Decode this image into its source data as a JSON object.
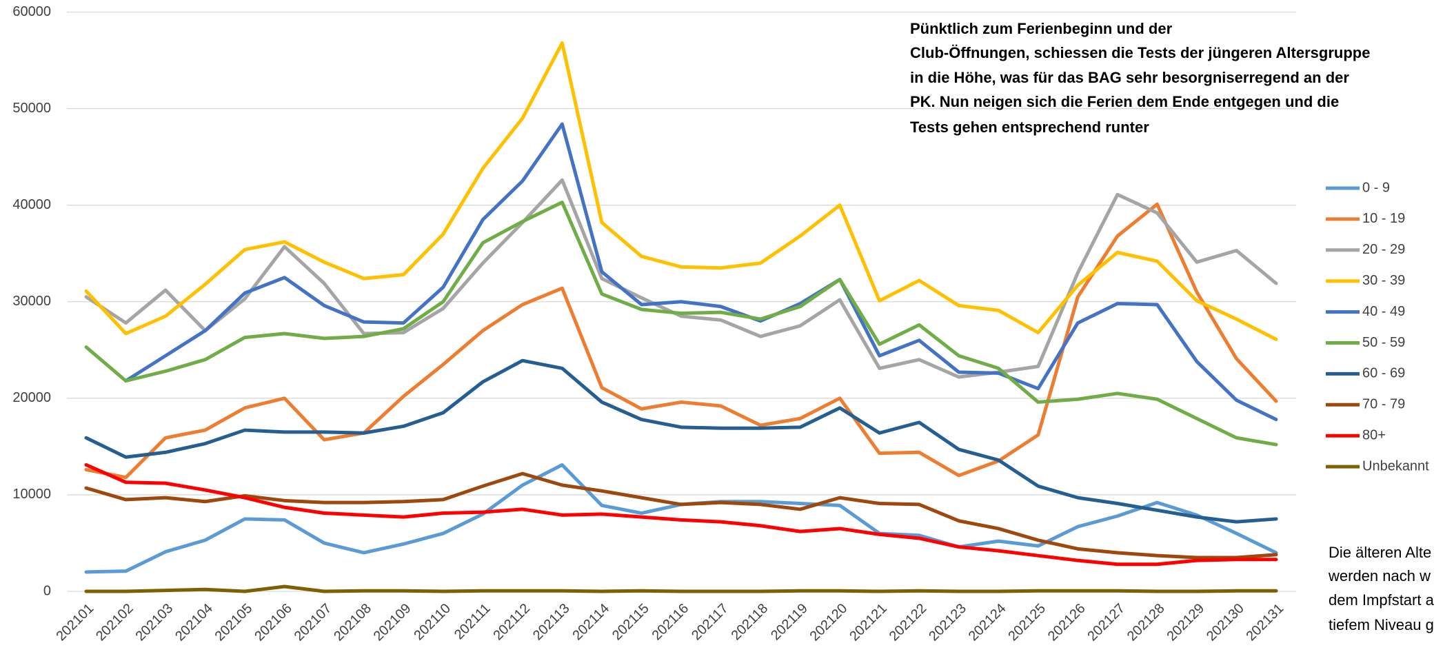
{
  "chart_data": {
    "type": "line",
    "categories": [
      "202101",
      "202102",
      "202103",
      "202104",
      "202105",
      "202106",
      "202107",
      "202108",
      "202109",
      "202110",
      "202111",
      "202112",
      "202113",
      "202114",
      "202115",
      "202116",
      "202117",
      "202118",
      "202119",
      "202120",
      "202121",
      "202122",
      "202123",
      "202124",
      "202125",
      "202126",
      "202127",
      "202128",
      "202129",
      "202130",
      "202131"
    ],
    "ylim": [
      0,
      60000
    ],
    "yticks": [
      0,
      10000,
      20000,
      30000,
      40000,
      50000,
      60000
    ],
    "grid": true,
    "legend": "right",
    "series": [
      {
        "name": "0 - 9",
        "color": "#5b9bd5",
        "values": [
          2000,
          2100,
          4100,
          5300,
          7500,
          7400,
          5000,
          4000,
          4900,
          6000,
          8000,
          11000,
          13100,
          8900,
          8100,
          9000,
          9300,
          9300,
          9100,
          8900,
          6000,
          5800,
          4600,
          5200,
          4700,
          6700,
          7800,
          9200,
          7900,
          6000,
          4000
        ]
      },
      {
        "name": "10 - 19",
        "color": "#ed7d31",
        "values": [
          12600,
          11800,
          15900,
          16700,
          19000,
          20000,
          15700,
          16400,
          20200,
          23500,
          27000,
          29700,
          31400,
          21100,
          18900,
          19600,
          19200,
          17200,
          17900,
          20000,
          14300,
          14400,
          12000,
          13500,
          16200,
          30500,
          36800,
          40100,
          31000,
          24100,
          19700
        ]
      },
      {
        "name": "20 - 29",
        "color": "#a5a5a5",
        "values": [
          30500,
          27800,
          31200,
          27000,
          30300,
          35700,
          31900,
          26700,
          26800,
          29300,
          34000,
          38200,
          42600,
          32400,
          30400,
          28500,
          28100,
          26400,
          27500,
          30200,
          23100,
          24000,
          22200,
          22700,
          23300,
          33000,
          41100,
          39200,
          34100,
          35300,
          31900
        ]
      },
      {
        "name": "30 - 39",
        "color": "#ffc000",
        "values": [
          31100,
          26700,
          28500,
          31800,
          35400,
          36200,
          34100,
          32400,
          32800,
          37000,
          43800,
          49000,
          56800,
          38200,
          34700,
          33600,
          33500,
          34000,
          36800,
          40000,
          30100,
          32200,
          29600,
          29100,
          26800,
          31700,
          35100,
          34200,
          30100,
          28200,
          26100
        ]
      },
      {
        "name": "40 - 49",
        "color": "#4472c4",
        "values": [
          null,
          21800,
          24400,
          27000,
          30900,
          32500,
          29600,
          27900,
          27800,
          31500,
          38500,
          42500,
          48400,
          33100,
          29700,
          30000,
          29500,
          28000,
          29800,
          32300,
          24400,
          26000,
          22700,
          22600,
          21000,
          27800,
          29800,
          29700,
          23800,
          19800,
          17800
        ]
      },
      {
        "name": "50 - 59",
        "color": "#70ad47",
        "values": [
          25300,
          21800,
          22800,
          24000,
          26300,
          26700,
          26200,
          26400,
          27200,
          30000,
          36100,
          38300,
          40300,
          30800,
          29200,
          28800,
          28900,
          28200,
          29500,
          32300,
          25600,
          27600,
          24400,
          23100,
          19600,
          19900,
          20500,
          19900,
          17900,
          15900,
          15200
        ]
      },
      {
        "name": "60 - 69",
        "color": "#255e91",
        "values": [
          15900,
          13900,
          14400,
          15300,
          16700,
          16500,
          16500,
          16400,
          17100,
          18500,
          21700,
          23900,
          23100,
          19600,
          17800,
          17000,
          16900,
          16900,
          17000,
          19000,
          16400,
          17500,
          14700,
          13600,
          10900,
          9700,
          9100,
          8400,
          7700,
          7200,
          7500
        ]
      },
      {
        "name": "70 - 79",
        "color": "#9e480e",
        "values": [
          10700,
          9500,
          9700,
          9300,
          9900,
          9400,
          9200,
          9200,
          9300,
          9500,
          10900,
          12200,
          11000,
          10400,
          9700,
          9000,
          9200,
          9000,
          8500,
          9700,
          9100,
          9000,
          7300,
          6500,
          5300,
          4400,
          4000,
          3700,
          3500,
          3500,
          3800
        ]
      },
      {
        "name": "80+",
        "color": "#ff0000",
        "values": [
          13100,
          11300,
          11200,
          10500,
          9700,
          8700,
          8100,
          7900,
          7700,
          8100,
          8200,
          8500,
          7900,
          8000,
          7700,
          7400,
          7200,
          6800,
          6200,
          6500,
          5900,
          5500,
          4600,
          4200,
          3700,
          3200,
          2800,
          2800,
          3200,
          3300,
          3300
        ]
      },
      {
        "name": "Unbekannt",
        "color": "#7f6000",
        "values": [
          0,
          0,
          100,
          200,
          0,
          500,
          0,
          50,
          50,
          0,
          50,
          50,
          50,
          0,
          50,
          0,
          0,
          0,
          50,
          50,
          0,
          50,
          0,
          0,
          50,
          50,
          50,
          0,
          0,
          50,
          50
        ]
      }
    ],
    "annotation_top": [
      "Pünktlich zum Ferienbeginn und der",
      "Club-Öffnungen, schiessen die Tests der jüngeren Altersgruppe",
      "in die Höhe, was für das BAG sehr besorgniserregend an der",
      "PK. Nun neigen sich die Ferien dem Ende entgegen und die",
      "Tests gehen entsprechend runter"
    ],
    "annotation_bottom": [
      "Die älteren Alte",
      "werden nach w",
      "dem Impfstart a",
      "tiefem Niveau g"
    ]
  }
}
